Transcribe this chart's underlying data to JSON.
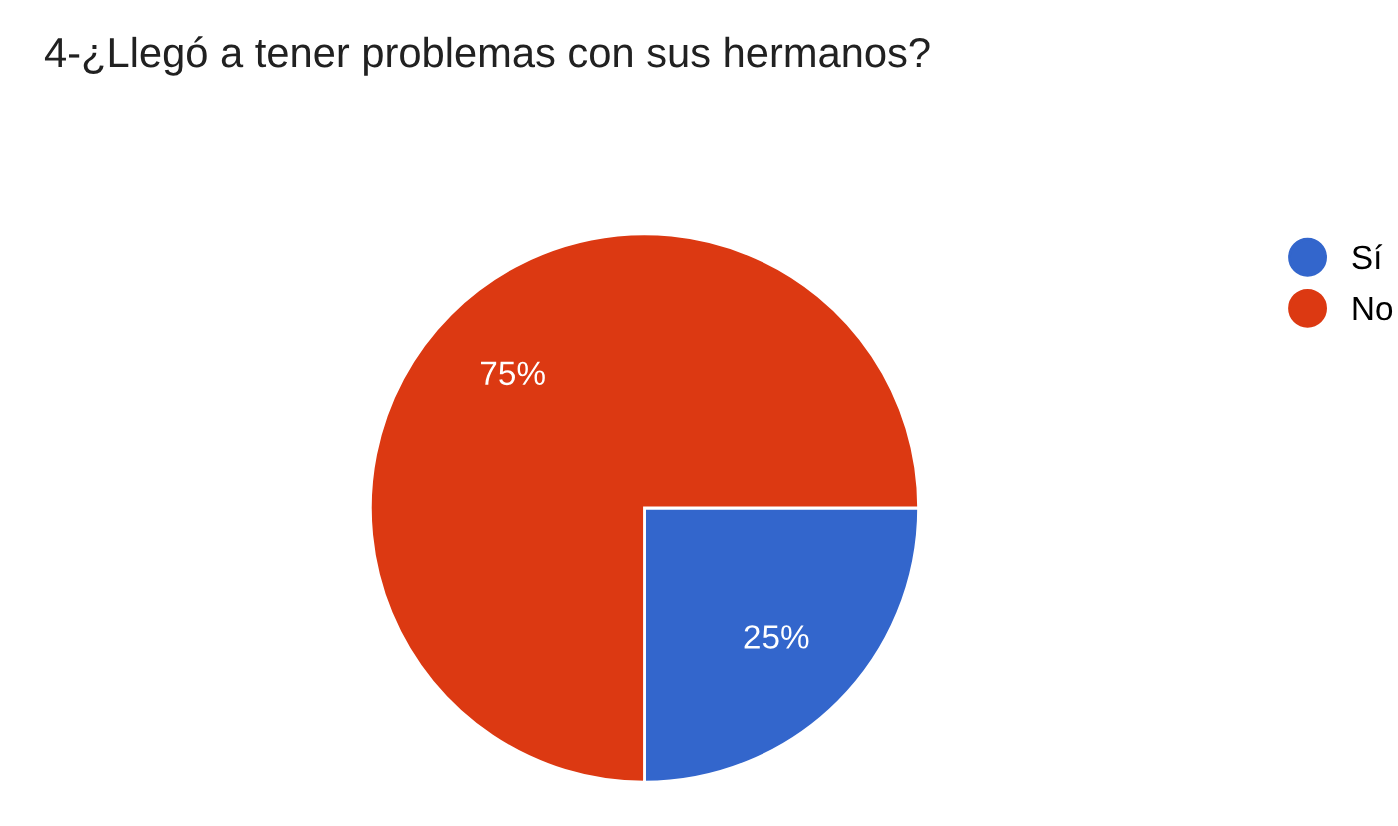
{
  "chart_data": {
    "type": "pie",
    "title": "4-¿Llegó a tener problemas con sus hermanos?",
    "categories": [
      "Sí",
      "No"
    ],
    "values": [
      25,
      75
    ],
    "colors": [
      "#3366cc",
      "#dc3912"
    ],
    "value_labels": [
      "25%",
      "75%"
    ],
    "legend": "right"
  }
}
